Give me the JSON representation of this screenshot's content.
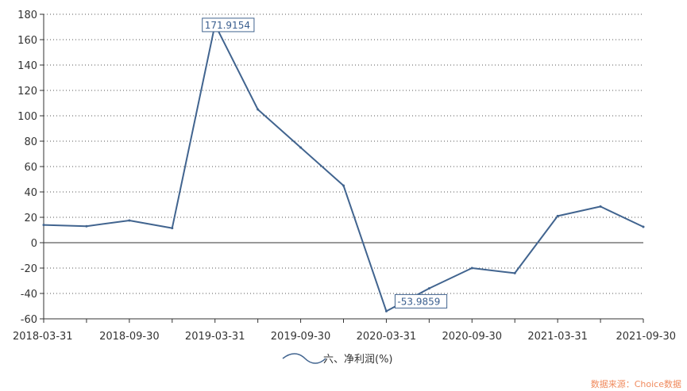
{
  "chart_data": {
    "type": "line",
    "title": "",
    "xlabel": "",
    "ylabel": "",
    "x": [
      "2018-03-31",
      "2018-06-30",
      "2018-09-30",
      "2018-12-31",
      "2019-03-31",
      "2019-06-30",
      "2019-09-30",
      "2019-12-31",
      "2020-03-31",
      "2020-06-30",
      "2020-09-30",
      "2020-12-31",
      "2021-03-31",
      "2021-06-30",
      "2021-09-30"
    ],
    "x_tick_labels": [
      "2018-03-31",
      "2018-09-30",
      "2019-03-31",
      "2019-09-30",
      "2020-03-31",
      "2020-09-30",
      "2021-03-31",
      "2021-09-30"
    ],
    "ylim": [
      -60,
      180
    ],
    "y_ticks": [
      -60,
      -40,
      -20,
      0,
      20,
      40,
      60,
      80,
      100,
      120,
      140,
      160,
      180
    ],
    "series": [
      {
        "name": "六、净利润(%)",
        "color": "#41648f",
        "values": [
          14,
          13,
          17.5,
          11.5,
          171.9154,
          105,
          75,
          45,
          -53.9859,
          -36,
          -20,
          -24,
          21,
          28.5,
          12.5
        ]
      }
    ],
    "annotations": [
      {
        "x": "2019-03-31",
        "label": "171.9154"
      },
      {
        "x": "2020-03-31",
        "label": "-53.9859"
      }
    ],
    "grid": "horizontal-dotted",
    "legend": "bottom-center",
    "source": "数据来源：Choice数据"
  }
}
